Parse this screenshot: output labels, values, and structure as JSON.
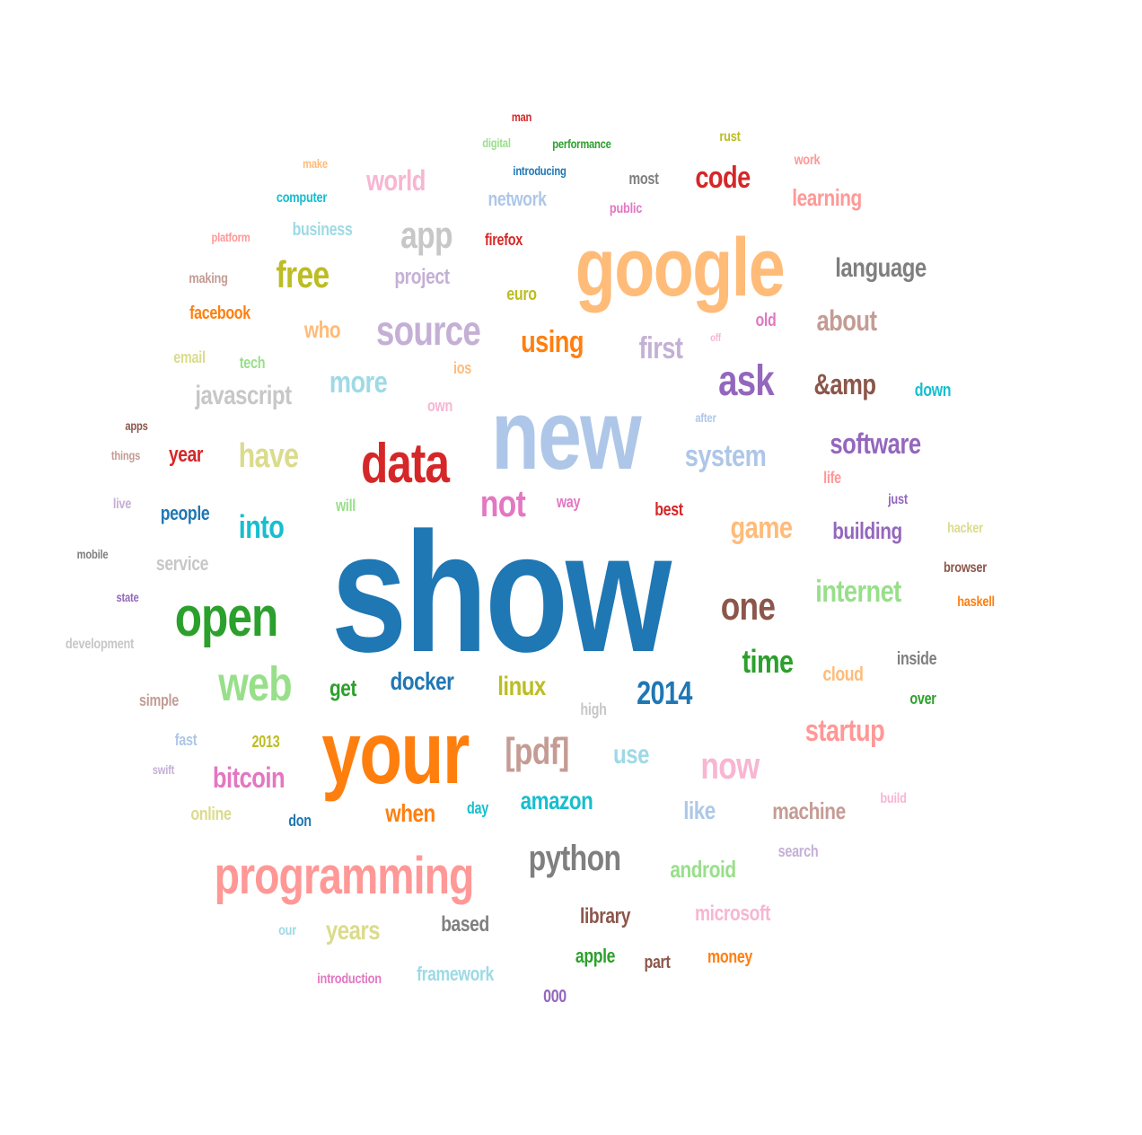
{
  "words": [
    {
      "text": "show",
      "color": "#1f77b4"
    },
    {
      "text": "new",
      "color": "#aec7e8"
    },
    {
      "text": "google",
      "color": "#ffbb78"
    },
    {
      "text": "your",
      "color": "#ff7f0e"
    },
    {
      "text": "data",
      "color": "#d62728"
    },
    {
      "text": "open",
      "color": "#2ca02c"
    },
    {
      "text": "programming",
      "color": "#ff9896"
    },
    {
      "text": "web",
      "color": "#98df8a"
    },
    {
      "text": "source",
      "color": "#c5b0d5"
    },
    {
      "text": "ask",
      "color": "#9467bd"
    },
    {
      "text": "code",
      "color": "#d62728"
    },
    {
      "text": "app",
      "color": "#c7c7c7"
    },
    {
      "text": "free",
      "color": "#bcbd22"
    },
    {
      "text": "world",
      "color": "#f7b6d2"
    },
    {
      "text": "language",
      "color": "#7f7f7f"
    },
    {
      "text": "learning",
      "color": "#ff9896"
    },
    {
      "text": "about",
      "color": "#c49c94"
    },
    {
      "text": "using",
      "color": "#ff7f0e"
    },
    {
      "text": "first",
      "color": "#c5b0d5"
    },
    {
      "text": "more",
      "color": "#9edae5"
    },
    {
      "text": "javascript",
      "color": "#c7c7c7"
    },
    {
      "text": "&amp",
      "color": "#8c564b"
    },
    {
      "text": "software",
      "color": "#9467bd"
    },
    {
      "text": "have",
      "color": "#dbdb8d"
    },
    {
      "text": "system",
      "color": "#aec7e8"
    },
    {
      "text": "not",
      "color": "#e377c2"
    },
    {
      "text": "into",
      "color": "#17becf"
    },
    {
      "text": "game",
      "color": "#ffbb78"
    },
    {
      "text": "building",
      "color": "#9467bd"
    },
    {
      "text": "internet",
      "color": "#98df8a"
    },
    {
      "text": "one",
      "color": "#8c564b"
    },
    {
      "text": "time",
      "color": "#2ca02c"
    },
    {
      "text": "2014",
      "color": "#1f77b4"
    },
    {
      "text": "docker",
      "color": "#1f77b4"
    },
    {
      "text": "linux",
      "color": "#bcbd22"
    },
    {
      "text": "[pdf]",
      "color": "#c49c94"
    },
    {
      "text": "startup",
      "color": "#ff9896"
    },
    {
      "text": "now",
      "color": "#f7b6d2"
    },
    {
      "text": "use",
      "color": "#9edae5"
    },
    {
      "text": "bitcoin",
      "color": "#e377c2"
    },
    {
      "text": "amazon",
      "color": "#17becf"
    },
    {
      "text": "python",
      "color": "#7f7f7f"
    },
    {
      "text": "machine",
      "color": "#c49c94"
    },
    {
      "text": "like",
      "color": "#aec7e8"
    },
    {
      "text": "when",
      "color": "#ff7f0e"
    },
    {
      "text": "android",
      "color": "#98df8a"
    },
    {
      "text": "library",
      "color": "#8c564b"
    },
    {
      "text": "microsoft",
      "color": "#f7b6d2"
    },
    {
      "text": "years",
      "color": "#dbdb8d"
    },
    {
      "text": "based",
      "color": "#7f7f7f"
    },
    {
      "text": "framework",
      "color": "#9edae5"
    },
    {
      "text": "apple",
      "color": "#2ca02c"
    },
    {
      "text": "money",
      "color": "#ff7f0e"
    },
    {
      "text": "part",
      "color": "#8c564b"
    },
    {
      "text": "000",
      "color": "#9467bd"
    },
    {
      "text": "introduction",
      "color": "#e377c2"
    },
    {
      "text": "our",
      "color": "#9edae5"
    },
    {
      "text": "search",
      "color": "#c5b0d5"
    },
    {
      "text": "build",
      "color": "#f7b6d2"
    },
    {
      "text": "cloud",
      "color": "#ffbb78"
    },
    {
      "text": "inside",
      "color": "#7f7f7f"
    },
    {
      "text": "over",
      "color": "#2ca02c"
    },
    {
      "text": "high",
      "color": "#c7c7c7"
    },
    {
      "text": "get",
      "color": "#2ca02c"
    },
    {
      "text": "people",
      "color": "#1f77b4"
    },
    {
      "text": "service",
      "color": "#c7c7c7"
    },
    {
      "text": "year",
      "color": "#d62728"
    },
    {
      "text": "will",
      "color": "#98df8a"
    },
    {
      "text": "way",
      "color": "#e377c2"
    },
    {
      "text": "best",
      "color": "#d62728"
    },
    {
      "text": "just",
      "color": "#9467bd"
    },
    {
      "text": "life",
      "color": "#ff9896"
    },
    {
      "text": "hacker",
      "color": "#dbdb8d"
    },
    {
      "text": "browser",
      "color": "#8c564b"
    },
    {
      "text": "haskell",
      "color": "#ff7f0e"
    },
    {
      "text": "down",
      "color": "#17becf"
    },
    {
      "text": "after",
      "color": "#aec7e8"
    },
    {
      "text": "old",
      "color": "#e377c2"
    },
    {
      "text": "off",
      "color": "#f7b6d2"
    },
    {
      "text": "ios",
      "color": "#ffbb78"
    },
    {
      "text": "own",
      "color": "#f7b6d2"
    },
    {
      "text": "euro",
      "color": "#bcbd22"
    },
    {
      "text": "who",
      "color": "#ffbb78"
    },
    {
      "text": "project",
      "color": "#c5b0d5"
    },
    {
      "text": "firefox",
      "color": "#d62728"
    },
    {
      "text": "network",
      "color": "#aec7e8"
    },
    {
      "text": "public",
      "color": "#e377c2"
    },
    {
      "text": "most",
      "color": "#7f7f7f"
    },
    {
      "text": "rust",
      "color": "#bcbd22"
    },
    {
      "text": "work",
      "color": "#ff9896"
    },
    {
      "text": "man",
      "color": "#d62728"
    },
    {
      "text": "digital",
      "color": "#98df8a"
    },
    {
      "text": "performance",
      "color": "#2ca02c"
    },
    {
      "text": "introducing",
      "color": "#1f77b4"
    },
    {
      "text": "make",
      "color": "#ffbb78"
    },
    {
      "text": "computer",
      "color": "#17becf"
    },
    {
      "text": "business",
      "color": "#9edae5"
    },
    {
      "text": "platform",
      "color": "#ff9896"
    },
    {
      "text": "making",
      "color": "#c49c94"
    },
    {
      "text": "facebook",
      "color": "#ff7f0e"
    },
    {
      "text": "email",
      "color": "#dbdb8d"
    },
    {
      "text": "tech",
      "color": "#98df8a"
    },
    {
      "text": "apps",
      "color": "#8c564b"
    },
    {
      "text": "things",
      "color": "#c49c94"
    },
    {
      "text": "live",
      "color": "#c5b0d5"
    },
    {
      "text": "mobile",
      "color": "#7f7f7f"
    },
    {
      "text": "state",
      "color": "#9467bd"
    },
    {
      "text": "development",
      "color": "#c7c7c7"
    },
    {
      "text": "simple",
      "color": "#c49c94"
    },
    {
      "text": "fast",
      "color": "#aec7e8"
    },
    {
      "text": "2013",
      "color": "#bcbd22"
    },
    {
      "text": "swift",
      "color": "#c5b0d5"
    },
    {
      "text": "online",
      "color": "#dbdb8d"
    },
    {
      "text": "don",
      "color": "#1f77b4"
    },
    {
      "text": "day",
      "color": "#17becf"
    }
  ]
}
